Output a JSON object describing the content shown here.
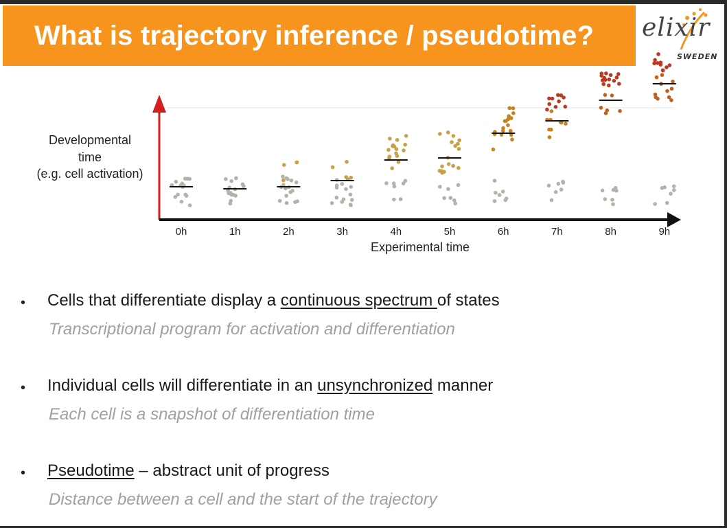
{
  "title": "What is trajectory inference / pseudotime?",
  "logo": {
    "word": "elixir",
    "sub": "SWEDEN"
  },
  "chart_data": {
    "type": "scatter",
    "ylabel_lines": [
      "Developmental",
      "time",
      "(e.g. cell activation)"
    ],
    "xlabel": "Experimental time",
    "categories": [
      "0h",
      "1h",
      "2h",
      "3h",
      "4h",
      "5h",
      "6h",
      "7h",
      "8h",
      "9h"
    ],
    "median_developmental_time": [
      0.14,
      0.13,
      0.14,
      0.17,
      0.27,
      0.28,
      0.4,
      0.46,
      0.56,
      0.64
    ],
    "grid": "top line only",
    "point_colors": [
      "#b5b0a8",
      "#c9a04a",
      "#c4831f",
      "#c1611f",
      "#b93a1e"
    ]
  },
  "bullets": [
    {
      "before": "Cells that differentiate display a ",
      "underlined": "continuous spectrum ",
      "after": "of states",
      "sub": "Transcriptional program for activation and differentiation"
    },
    {
      "before": "Individual cells will differentiate in an ",
      "underlined": "unsynchronized",
      "after": " manner",
      "sub": "Each cell is a snapshot of differentiation time"
    },
    {
      "before": "",
      "underlined": "Pseudotime",
      "after": " – abstract unit of progress",
      "sub": "Distance between a cell and the start of the trajectory"
    }
  ]
}
